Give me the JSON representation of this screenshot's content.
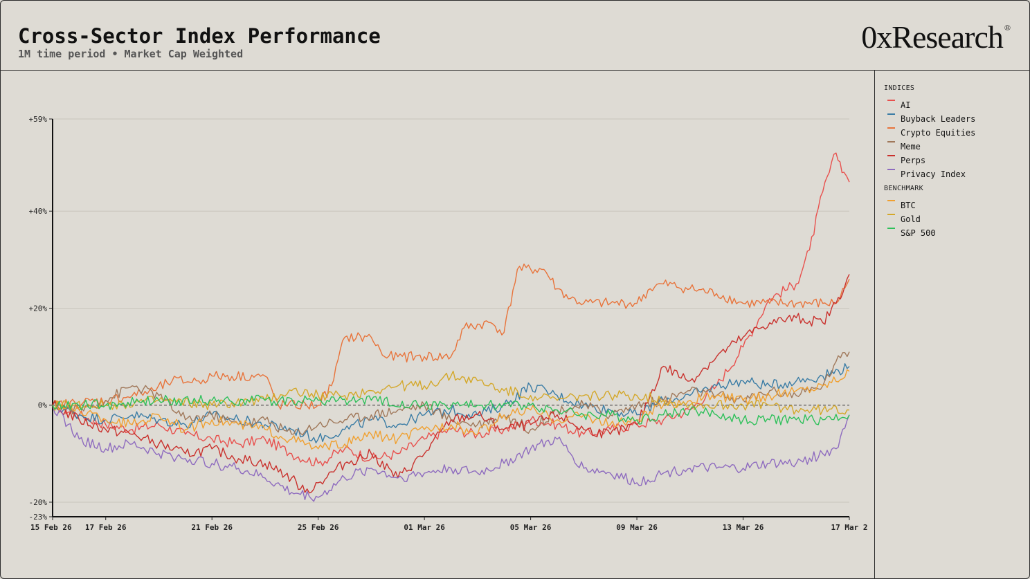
{
  "header": {
    "title": "Cross-Sector Index Performance",
    "subtitle": "1M time period • Market Cap Weighted",
    "brand": "0xResearch",
    "brand_mark": "®"
  },
  "legend": {
    "indices_heading": "INDICES",
    "benchmark_heading": "BENCHMARK"
  },
  "chart_data": {
    "type": "line",
    "title": "Cross-Sector Index Performance",
    "subtitle": "1M time period • Market Cap Weighted",
    "ylim": [
      -23,
      59
    ],
    "y_ticks": [
      59,
      40,
      20,
      0,
      -20,
      -23
    ],
    "y_tick_labels": [
      "+59%",
      "+40%",
      "+20%",
      "0%",
      "-20%",
      "-23%"
    ],
    "x_tick_positions": [
      0,
      2,
      6,
      10,
      14,
      18,
      22,
      26,
      30
    ],
    "x_tick_labels": [
      "15 Feb 26",
      "17 Feb 26",
      "21 Feb 26",
      "25 Feb 26",
      "01 Mar 26",
      "05 Mar 26",
      "09 Mar 26",
      "13 Mar 26",
      "17 Mar 2"
    ],
    "x_range": [
      0,
      30
    ],
    "zero_line": "dashed",
    "series": [
      {
        "name": "AI",
        "group": "indices",
        "color": "#e8504d",
        "points": [
          [
            0,
            0
          ],
          [
            1,
            -2
          ],
          [
            2,
            -4
          ],
          [
            3,
            -5
          ],
          [
            4,
            -4
          ],
          [
            5,
            -6
          ],
          [
            6,
            -7
          ],
          [
            7,
            -8
          ],
          [
            8,
            -7
          ],
          [
            9,
            -10
          ],
          [
            10,
            -12
          ],
          [
            11,
            -9
          ],
          [
            12,
            -11
          ],
          [
            13,
            -10
          ],
          [
            14,
            -7
          ],
          [
            15,
            -5
          ],
          [
            16,
            -6
          ],
          [
            17,
            -5
          ],
          [
            18,
            -3
          ],
          [
            19,
            -4
          ],
          [
            20,
            -6
          ],
          [
            21,
            -5
          ],
          [
            22,
            -4
          ],
          [
            23,
            -3
          ],
          [
            24,
            -1
          ],
          [
            25,
            4
          ],
          [
            26,
            12
          ],
          [
            27,
            22
          ],
          [
            28,
            25
          ],
          [
            28.5,
            32
          ],
          [
            29,
            44
          ],
          [
            29.5,
            52
          ],
          [
            29.8,
            48
          ],
          [
            30,
            46
          ]
        ]
      },
      {
        "name": "Buyback Leaders",
        "group": "indices",
        "color": "#3a7ca5",
        "points": [
          [
            0,
            0
          ],
          [
            1,
            -2
          ],
          [
            2,
            -3
          ],
          [
            3,
            -2
          ],
          [
            4,
            -3
          ],
          [
            5,
            -4
          ],
          [
            6,
            -2
          ],
          [
            7,
            -3
          ],
          [
            8,
            -4
          ],
          [
            9,
            -5
          ],
          [
            10,
            -7
          ],
          [
            11,
            -5
          ],
          [
            12,
            -3
          ],
          [
            13,
            -4
          ],
          [
            14,
            -2
          ],
          [
            15,
            -1
          ],
          [
            16,
            -2
          ],
          [
            17,
            0
          ],
          [
            18,
            4
          ],
          [
            19,
            2
          ],
          [
            20,
            0
          ],
          [
            21,
            -1
          ],
          [
            22,
            -2
          ],
          [
            23,
            1
          ],
          [
            24,
            2
          ],
          [
            25,
            4
          ],
          [
            26,
            5
          ],
          [
            27,
            4
          ],
          [
            28,
            5
          ],
          [
            29,
            6
          ],
          [
            30,
            8
          ]
        ]
      },
      {
        "name": "Crypto Equities",
        "group": "indices",
        "color": "#e8733a",
        "points": [
          [
            0,
            0
          ],
          [
            2,
            1
          ],
          [
            3,
            2
          ],
          [
            3.8,
            3
          ],
          [
            4.5,
            5
          ],
          [
            5.5,
            5
          ],
          [
            6,
            6
          ],
          [
            8,
            6
          ],
          [
            8.5,
            0
          ],
          [
            10,
            0
          ],
          [
            10.5,
            4
          ],
          [
            11,
            14
          ],
          [
            12,
            14
          ],
          [
            12.5,
            10
          ],
          [
            13,
            10
          ],
          [
            14,
            10
          ],
          [
            15,
            10
          ],
          [
            15.5,
            16
          ],
          [
            16.5,
            17
          ],
          [
            17,
            15
          ],
          [
            17.5,
            28
          ],
          [
            18.5,
            28
          ],
          [
            19,
            24
          ],
          [
            19.5,
            22
          ],
          [
            20,
            21
          ],
          [
            21,
            21
          ],
          [
            22,
            21
          ],
          [
            22.5,
            24
          ],
          [
            23,
            25
          ],
          [
            24,
            24
          ],
          [
            25,
            23
          ],
          [
            26,
            21
          ],
          [
            27,
            21
          ],
          [
            28,
            21
          ],
          [
            29,
            21
          ],
          [
            29.5,
            21
          ],
          [
            30,
            26
          ]
        ]
      },
      {
        "name": "Meme",
        "group": "indices",
        "color": "#a0785a",
        "points": [
          [
            0,
            0
          ],
          [
            1,
            -1
          ],
          [
            2,
            1
          ],
          [
            3,
            4
          ],
          [
            4,
            2
          ],
          [
            5,
            -3
          ],
          [
            6,
            -2
          ],
          [
            7,
            -4
          ],
          [
            8,
            -3
          ],
          [
            9,
            -6
          ],
          [
            10,
            -4
          ],
          [
            11,
            -3
          ],
          [
            12,
            -2
          ],
          [
            13,
            -1
          ],
          [
            14,
            0
          ],
          [
            15,
            -3
          ],
          [
            16,
            -4
          ],
          [
            17,
            -2
          ],
          [
            18,
            -5
          ],
          [
            19,
            -1
          ],
          [
            20,
            0
          ],
          [
            21,
            -2
          ],
          [
            22,
            0
          ],
          [
            23,
            1
          ],
          [
            24,
            3
          ],
          [
            25,
            2
          ],
          [
            26,
            1
          ],
          [
            27,
            3
          ],
          [
            28,
            2
          ],
          [
            29,
            4
          ],
          [
            29.5,
            9
          ],
          [
            30,
            11
          ]
        ]
      },
      {
        "name": "Perps",
        "group": "indices",
        "color": "#c9302c",
        "points": [
          [
            0,
            0
          ],
          [
            1,
            -3
          ],
          [
            2,
            -5
          ],
          [
            3,
            -6
          ],
          [
            4,
            -8
          ],
          [
            5,
            -10
          ],
          [
            6,
            -9
          ],
          [
            7,
            -11
          ],
          [
            8,
            -12
          ],
          [
            9,
            -15
          ],
          [
            9.5,
            -18
          ],
          [
            10,
            -16
          ],
          [
            11,
            -12
          ],
          [
            12,
            -10
          ],
          [
            13,
            -15
          ],
          [
            14,
            -10
          ],
          [
            15,
            -3
          ],
          [
            16,
            -2
          ],
          [
            17,
            -5
          ],
          [
            18,
            -4
          ],
          [
            19,
            -2
          ],
          [
            20,
            -5
          ],
          [
            21,
            -6
          ],
          [
            22,
            -4
          ],
          [
            23,
            8
          ],
          [
            24,
            5
          ],
          [
            25,
            10
          ],
          [
            26,
            14
          ],
          [
            27,
            17
          ],
          [
            28,
            18
          ],
          [
            29,
            17
          ],
          [
            29.5,
            21
          ],
          [
            30,
            27
          ]
        ]
      },
      {
        "name": "Privacy Index",
        "group": "indices",
        "color": "#8e6bbf",
        "points": [
          [
            0,
            0
          ],
          [
            1,
            -7
          ],
          [
            2,
            -9
          ],
          [
            3,
            -8
          ],
          [
            4,
            -10
          ],
          [
            5,
            -11
          ],
          [
            6,
            -12
          ],
          [
            7,
            -13
          ],
          [
            8,
            -15
          ],
          [
            9,
            -18
          ],
          [
            10,
            -19
          ],
          [
            11,
            -15
          ],
          [
            12,
            -13
          ],
          [
            13,
            -15
          ],
          [
            14,
            -14
          ],
          [
            15,
            -13
          ],
          [
            16,
            -14
          ],
          [
            17,
            -12
          ],
          [
            18,
            -9
          ],
          [
            19,
            -7
          ],
          [
            20,
            -13
          ],
          [
            21,
            -14
          ],
          [
            22,
            -16
          ],
          [
            23,
            -14
          ],
          [
            24,
            -13
          ],
          [
            25,
            -13
          ],
          [
            26,
            -13
          ],
          [
            27,
            -12
          ],
          [
            28,
            -12
          ],
          [
            29,
            -10
          ],
          [
            29.5,
            -9
          ],
          [
            30,
            -2
          ]
        ]
      },
      {
        "name": "BTC",
        "group": "benchmark",
        "color": "#f0a030",
        "points": [
          [
            0,
            0
          ],
          [
            1,
            -1
          ],
          [
            2,
            -3
          ],
          [
            3,
            -4
          ],
          [
            4,
            -2
          ],
          [
            5,
            -5
          ],
          [
            6,
            -3
          ],
          [
            7,
            -4
          ],
          [
            8,
            -5
          ],
          [
            9,
            -7
          ],
          [
            10,
            -9
          ],
          [
            11,
            -8
          ],
          [
            12,
            -6
          ],
          [
            13,
            -7
          ],
          [
            14,
            -5
          ],
          [
            15,
            -4
          ],
          [
            16,
            -6
          ],
          [
            17,
            -2
          ],
          [
            18,
            -1
          ],
          [
            19,
            -3
          ],
          [
            20,
            -2
          ],
          [
            21,
            -4
          ],
          [
            22,
            -3
          ],
          [
            23,
            0
          ],
          [
            24,
            1
          ],
          [
            25,
            2
          ],
          [
            26,
            1
          ],
          [
            27,
            2
          ],
          [
            28,
            3
          ],
          [
            29,
            4
          ],
          [
            30,
            7
          ]
        ]
      },
      {
        "name": "Gold",
        "group": "benchmark",
        "color": "#d4a82a",
        "points": [
          [
            0,
            0
          ],
          [
            2,
            0
          ],
          [
            4,
            1
          ],
          [
            6,
            0
          ],
          [
            8,
            1
          ],
          [
            9,
            3
          ],
          [
            10,
            2
          ],
          [
            11,
            2
          ],
          [
            12,
            3
          ],
          [
            13,
            4
          ],
          [
            14,
            4
          ],
          [
            15,
            6
          ],
          [
            16,
            5
          ],
          [
            17,
            3
          ],
          [
            18,
            2
          ],
          [
            19,
            1
          ],
          [
            20,
            2
          ],
          [
            21,
            2
          ],
          [
            22,
            2
          ],
          [
            23,
            1
          ],
          [
            24,
            0
          ],
          [
            25,
            0
          ],
          [
            26,
            0
          ],
          [
            27,
            0
          ],
          [
            28,
            -1
          ],
          [
            29,
            -1
          ],
          [
            30,
            -1
          ]
        ]
      },
      {
        "name": "S&P 500",
        "group": "benchmark",
        "color": "#2ec05a",
        "points": [
          [
            0,
            0
          ],
          [
            2,
            0
          ],
          [
            4,
            1
          ],
          [
            6,
            1
          ],
          [
            8,
            1
          ],
          [
            10,
            1
          ],
          [
            12,
            1
          ],
          [
            14,
            0
          ],
          [
            16,
            0
          ],
          [
            18,
            0
          ],
          [
            19,
            -1
          ],
          [
            20,
            -2
          ],
          [
            21,
            -2
          ],
          [
            22,
            -3
          ],
          [
            23,
            -2
          ],
          [
            24,
            -1
          ],
          [
            25,
            -2
          ],
          [
            26,
            -3
          ],
          [
            27,
            -3
          ],
          [
            28,
            -3
          ],
          [
            29,
            -3
          ],
          [
            30,
            -2
          ]
        ]
      }
    ]
  }
}
